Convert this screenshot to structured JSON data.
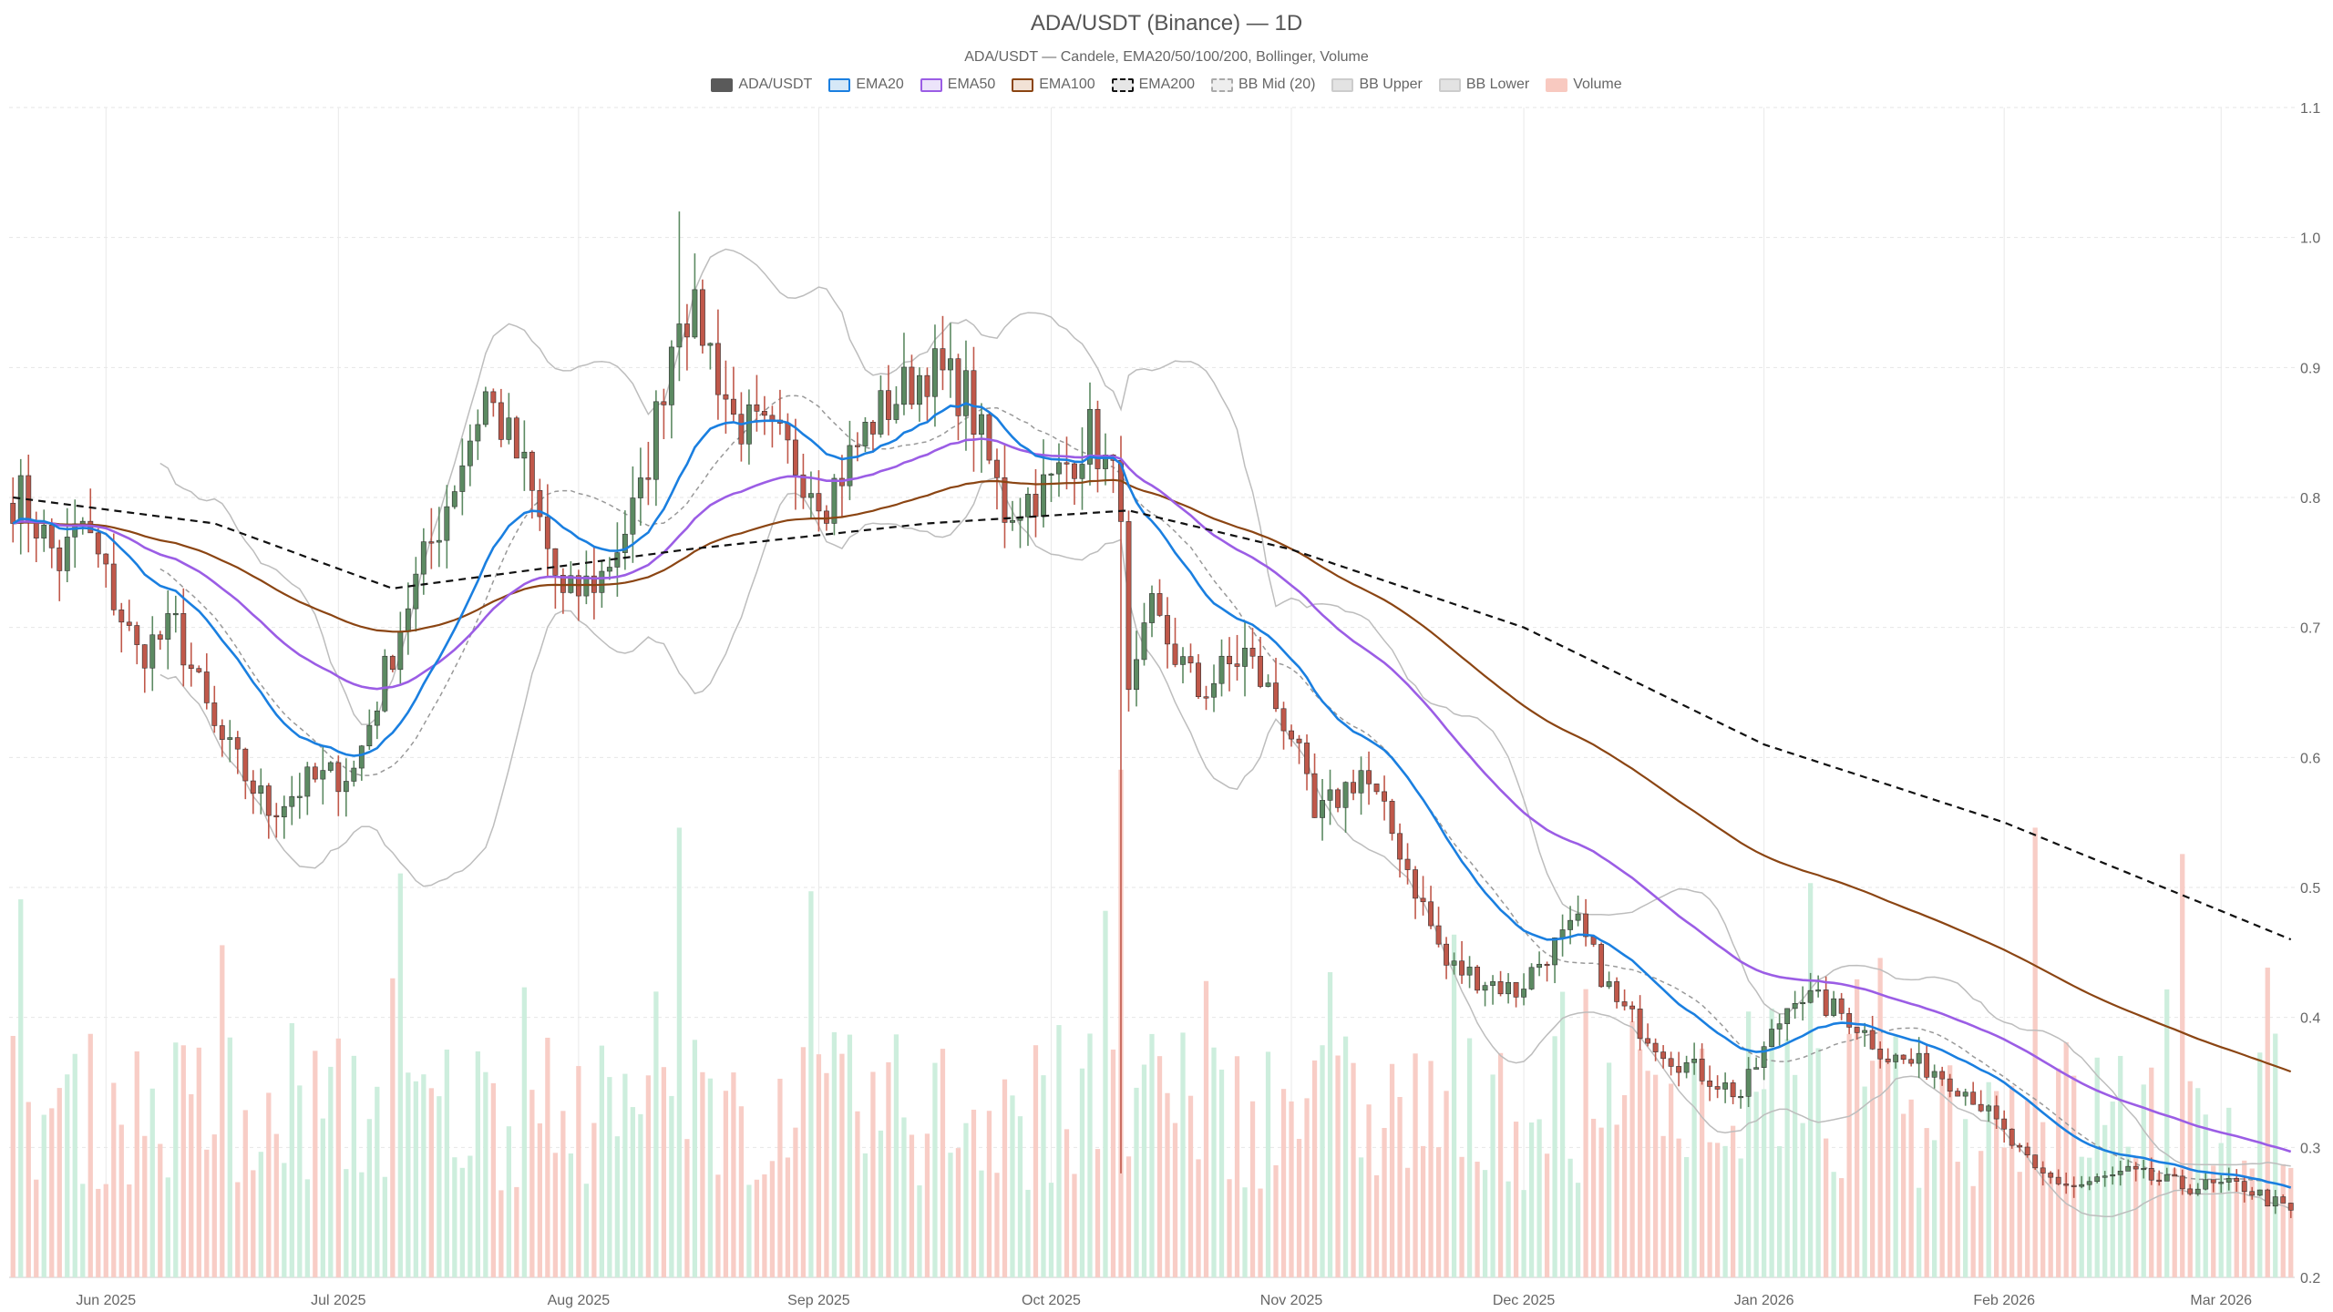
{
  "chart_data": {
    "type": "candlestick",
    "title": "ADA/USDT (Binance) — 1D",
    "subtitle": "ADA/USDT — Candele, EMA20/50/100/200, Bollinger, Volume",
    "legend": [
      {
        "label": "ADA/USDT",
        "fill": "#5a5a5a",
        "stroke": "#5a5a5a",
        "dash": false
      },
      {
        "label": "EMA20",
        "fill": "#d6e8f7",
        "stroke": "#1a7fe0",
        "dash": false
      },
      {
        "label": "EMA50",
        "fill": "#ece4fa",
        "stroke": "#9b5de5",
        "dash": false
      },
      {
        "label": "EMA100",
        "fill": "#f2e2d6",
        "stroke": "#8b4513",
        "dash": false
      },
      {
        "label": "EMA200",
        "fill": "#e6e6e6",
        "stroke": "#111111",
        "dash": true
      },
      {
        "label": "BB Mid (20)",
        "fill": "#eeeeee",
        "stroke": "#aaaaaa",
        "dash": true
      },
      {
        "label": "BB Upper",
        "fill": "#e3e3e3",
        "stroke": "#cccccc",
        "dash": false
      },
      {
        "label": "BB Lower",
        "fill": "#e3e3e3",
        "stroke": "#cccccc",
        "dash": false
      },
      {
        "label": "Volume",
        "fill": "#f8c9c0",
        "stroke": "#f8c9c0",
        "dash": false
      }
    ],
    "x_ticks": [
      "Jun 2025",
      "Jul 2025",
      "Aug 2025",
      "Sep 2025",
      "Oct 2025",
      "Nov 2025",
      "Dec 2025",
      "Jan 2026",
      "Feb 2026",
      "Mar 2026"
    ],
    "y_ticks": [
      "0.2",
      "0.3",
      "0.4",
      "0.5",
      "0.6",
      "0.7",
      "0.8",
      "0.9",
      "1.0",
      "1.1"
    ],
    "ylim": [
      0.2,
      1.1
    ],
    "grid": true,
    "legend_position": "top-center",
    "colors": {
      "up": "#5c8a62",
      "down": "#c0584a",
      "vol_up": "#cdeedd",
      "vol_down": "#f8cdc6"
    },
    "close_anchors": [
      [
        "2025-05-21",
        0.8
      ],
      [
        "2025-05-26",
        0.75
      ],
      [
        "2025-05-29",
        0.78
      ],
      [
        "2025-06-05",
        0.68
      ],
      [
        "2025-06-10",
        0.7
      ],
      [
        "2025-06-15",
        0.62
      ],
      [
        "2025-06-22",
        0.56
      ],
      [
        "2025-06-27",
        0.58
      ],
      [
        "2025-07-03",
        0.59
      ],
      [
        "2025-07-10",
        0.72
      ],
      [
        "2025-07-14",
        0.78
      ],
      [
        "2025-07-20",
        0.88
      ],
      [
        "2025-07-25",
        0.82
      ],
      [
        "2025-07-30",
        0.72
      ],
      [
        "2025-08-04",
        0.74
      ],
      [
        "2025-08-09",
        0.8
      ],
      [
        "2025-08-14",
        0.95
      ],
      [
        "2025-08-17",
        0.93
      ],
      [
        "2025-08-21",
        0.86
      ],
      [
        "2025-08-27",
        0.84
      ],
      [
        "2025-09-02",
        0.8
      ],
      [
        "2025-09-08",
        0.86
      ],
      [
        "2025-09-15",
        0.9
      ],
      [
        "2025-09-20",
        0.88
      ],
      [
        "2025-09-25",
        0.79
      ],
      [
        "2025-10-01",
        0.81
      ],
      [
        "2025-10-06",
        0.85
      ],
      [
        "2025-10-10",
        0.8
      ],
      [
        "2025-10-11",
        0.64
      ],
      [
        "2025-10-14",
        0.71
      ],
      [
        "2025-10-20",
        0.65
      ],
      [
        "2025-10-26",
        0.68
      ],
      [
        "2025-11-01",
        0.62
      ],
      [
        "2025-11-04",
        0.55
      ],
      [
        "2025-11-10",
        0.59
      ],
      [
        "2025-11-15",
        0.53
      ],
      [
        "2025-11-21",
        0.44
      ],
      [
        "2025-11-30",
        0.42
      ],
      [
        "2025-12-04",
        0.45
      ],
      [
        "2025-12-08",
        0.47
      ],
      [
        "2025-12-13",
        0.41
      ],
      [
        "2025-12-20",
        0.37
      ],
      [
        "2025-12-29",
        0.34
      ],
      [
        "2026-01-05",
        0.42
      ],
      [
        "2026-01-12",
        0.4
      ],
      [
        "2026-01-17",
        0.37
      ],
      [
        "2026-01-23",
        0.36
      ],
      [
        "2026-01-28",
        0.34
      ],
      [
        "2026-02-05",
        0.28
      ],
      [
        "2026-02-10",
        0.27
      ],
      [
        "2026-02-17",
        0.28
      ],
      [
        "2026-02-24",
        0.27
      ],
      [
        "2026-03-04",
        0.27
      ],
      [
        "2026-03-10",
        0.25
      ]
    ],
    "ema200_anchors": [
      [
        "2025-05-20",
        0.8
      ],
      [
        "2025-06-15",
        0.78
      ],
      [
        "2025-07-08",
        0.73
      ],
      [
        "2025-08-15",
        0.76
      ],
      [
        "2025-09-15",
        0.78
      ],
      [
        "2025-10-11",
        0.79
      ],
      [
        "2025-11-01",
        0.76
      ],
      [
        "2025-12-01",
        0.7
      ],
      [
        "2026-01-01",
        0.61
      ],
      [
        "2026-02-01",
        0.55
      ],
      [
        "2026-03-10",
        0.46
      ]
    ],
    "volume_max": 1.0
  }
}
